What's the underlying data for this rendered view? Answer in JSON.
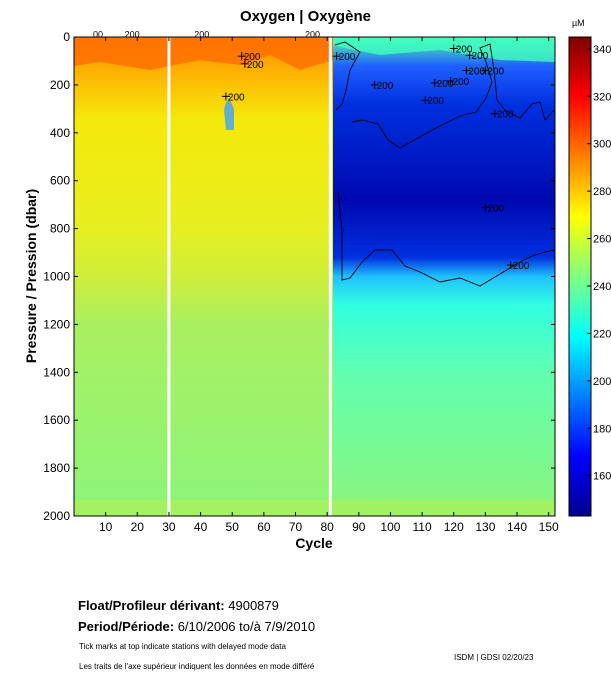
{
  "chart_data": {
    "type": "heatmap",
    "title": "Oxygen | Oxygène",
    "xlabel": "Cycle",
    "ylabel": "Pressure / Pression (dbar)",
    "xlim": [
      0,
      152
    ],
    "ylim": [
      2000,
      0
    ],
    "x_ticks": [
      10,
      20,
      30,
      40,
      50,
      60,
      70,
      80,
      90,
      100,
      110,
      120,
      130,
      140,
      150
    ],
    "y_ticks": [
      0,
      200,
      400,
      600,
      800,
      1000,
      1200,
      1400,
      1600,
      1800,
      2000
    ],
    "colorbar": {
      "unit": "µM",
      "range": [
        143,
        345
      ],
      "ticks": [
        160,
        180,
        200,
        220,
        240,
        260,
        280,
        300,
        320,
        340
      ],
      "colormap": "jet"
    },
    "contour_level": 200,
    "contour_labels": [
      "200",
      "200",
      "200",
      "200",
      "200",
      "200",
      "200",
      "200",
      "200",
      "200",
      "200",
      "200",
      "200",
      "200",
      "200"
    ],
    "surface_label_fragments": [
      "00",
      "200",
      "200",
      "200"
    ],
    "missing_profile_cycles": [
      30,
      81
    ],
    "regimes": [
      {
        "name": "cycles 1-81",
        "surface_uM": 290,
        "mid_uM": 262,
        "deep_uM": 240
      },
      {
        "name": "cycles 82-152",
        "surface_uM": 225,
        "oxygen_minimum_uM": 160,
        "deep_uM": 225
      }
    ]
  },
  "float_info": {
    "float_label": "Float/Profileur dérivant:",
    "float_id": "4900879",
    "period_label": "Period/Période:",
    "period_start": "6/10/2006",
    "period_sep": "to/à",
    "period_end": "7/9/2010"
  },
  "notes": {
    "english": "Tick marks at top indicate stations with delayed mode data",
    "french": "Les traits de l'axe supérieur indiquent les données en mode différé"
  },
  "footer": {
    "stamp": "ISDM | GDSI  02/20/23"
  }
}
